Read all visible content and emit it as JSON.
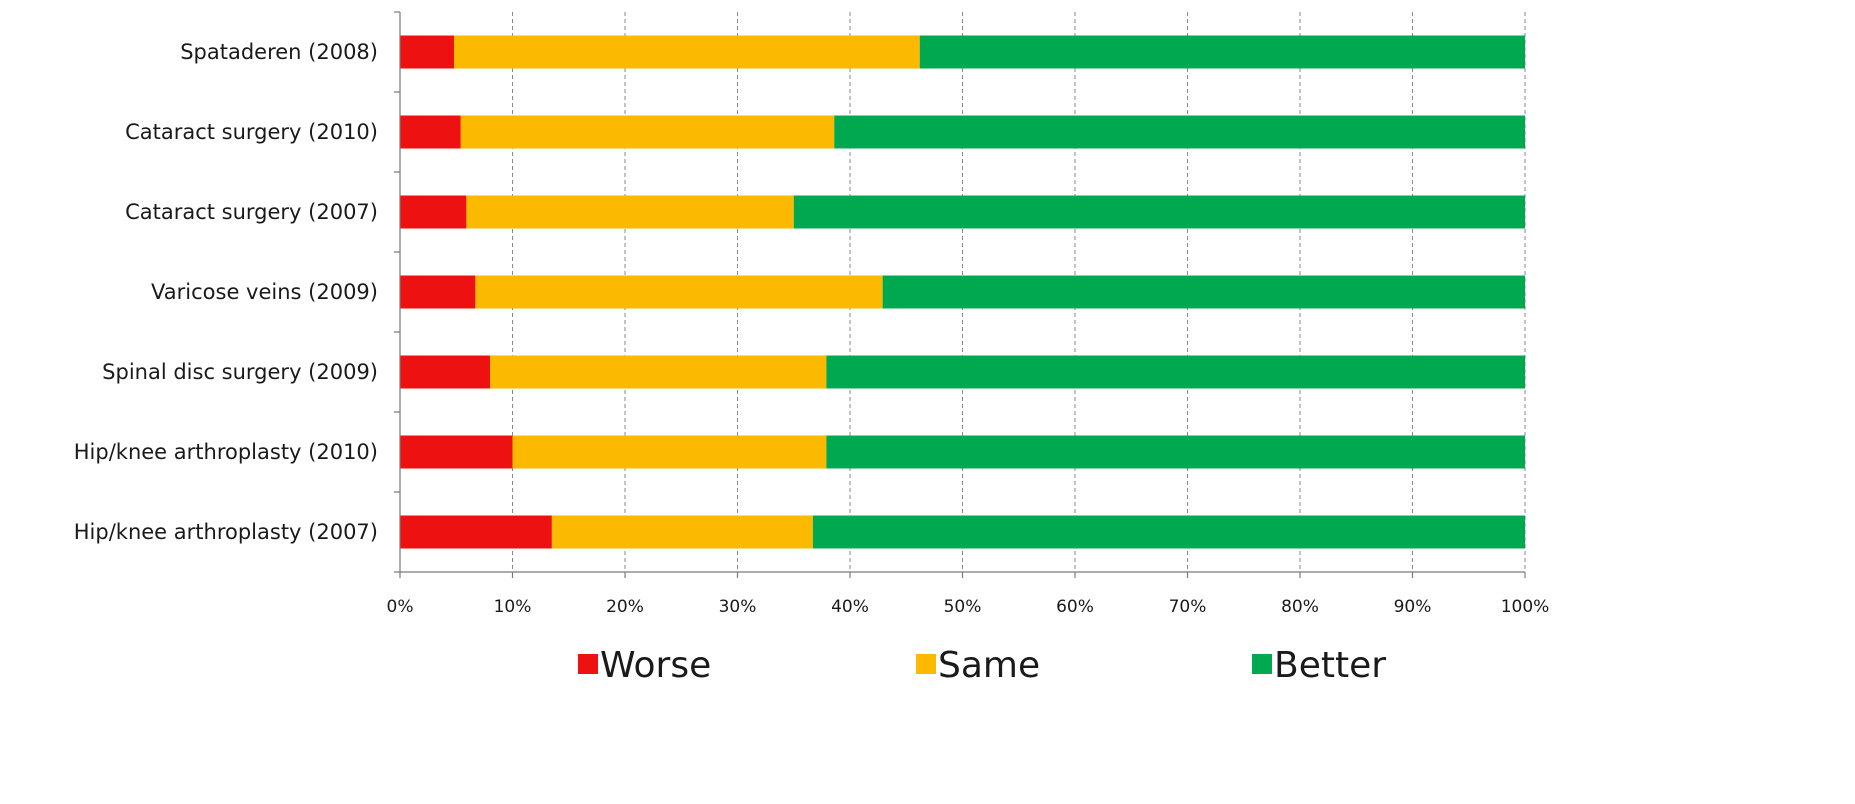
{
  "chart_data": {
    "type": "bar",
    "orientation": "horizontal",
    "stacked": true,
    "title": "",
    "xlabel": "",
    "ylabel": "",
    "xlim": [
      0,
      100
    ],
    "x_ticks": [
      "0%",
      "10%",
      "20%",
      "30%",
      "40%",
      "50%",
      "60%",
      "70%",
      "80%",
      "90%",
      "100%"
    ],
    "grid": "vertical dashed",
    "legend_position": "bottom",
    "categories": [
      "Spataderen (2008)",
      "Cataract surgery (2010)",
      "Cataract surgery (2007)",
      "Varicose veins (2009)",
      "Spinal disc surgery (2009)",
      "Hip/knee arthroplasty (2010)",
      "Hip/knee arthroplasty (2007)"
    ],
    "series": [
      {
        "name": "Worse",
        "color": "#ee1111",
        "values": [
          4.8,
          5.4,
          5.9,
          6.7,
          8.0,
          10.0,
          13.5
        ]
      },
      {
        "name": "Same",
        "color": "#fbba00",
        "values": [
          41.4,
          33.2,
          29.1,
          36.2,
          29.9,
          27.9,
          23.2
        ]
      },
      {
        "name": "Better",
        "color": "#00a84f",
        "values": [
          53.8,
          61.4,
          65.0,
          57.1,
          62.1,
          62.1,
          63.3
        ]
      }
    ]
  }
}
